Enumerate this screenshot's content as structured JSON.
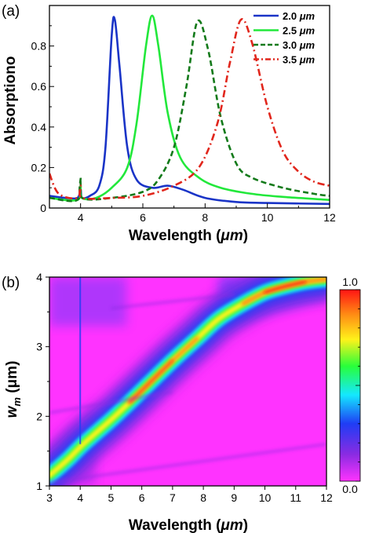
{
  "chart_data": [
    {
      "panel_label": "(a)",
      "type": "line",
      "xlabel_prefix": "Wavelength (",
      "xlabel_unit": "μm",
      "xlabel_suffix": ")",
      "ylabel": "Absorptiono",
      "xlim": [
        3,
        12
      ],
      "ylim": [
        0,
        1.0
      ],
      "xticks": [
        "4",
        "6",
        "8",
        "10",
        "12"
      ],
      "yticks": [
        "0",
        "0.2",
        "0.4",
        "0.6",
        "0.8"
      ],
      "legend_position": "top-right",
      "series": [
        {
          "name": "2.0",
          "unit": "μm",
          "color": "#1a34c7",
          "dash": "solid",
          "peak_x": 5.1,
          "peak_y": 0.93,
          "points": [
            [
              3,
              0.06
            ],
            [
              3.5,
              0.05
            ],
            [
              3.9,
              0.05
            ],
            [
              4.0,
              0.09
            ],
            [
              4.05,
              0.05
            ],
            [
              4.3,
              0.06
            ],
            [
              4.6,
              0.11
            ],
            [
              4.8,
              0.3
            ],
            [
              5.0,
              0.85
            ],
            [
              5.1,
              0.93
            ],
            [
              5.25,
              0.7
            ],
            [
              5.5,
              0.3
            ],
            [
              5.8,
              0.14
            ],
            [
              6.3,
              0.1
            ],
            [
              6.8,
              0.11
            ],
            [
              7.3,
              0.09
            ],
            [
              8,
              0.05
            ],
            [
              9,
              0.03
            ],
            [
              10,
              0.025
            ],
            [
              12,
              0.02
            ]
          ]
        },
        {
          "name": "2.5",
          "unit": "μm",
          "color": "#22e83b",
          "dash": "solid",
          "peak_x": 6.3,
          "peak_y": 0.95,
          "points": [
            [
              3,
              0.05
            ],
            [
              3.9,
              0.04
            ],
            [
              4.0,
              0.11
            ],
            [
              4.05,
              0.05
            ],
            [
              4.5,
              0.05
            ],
            [
              5.0,
              0.1
            ],
            [
              5.5,
              0.2
            ],
            [
              5.8,
              0.42
            ],
            [
              6.1,
              0.8
            ],
            [
              6.3,
              0.95
            ],
            [
              6.5,
              0.8
            ],
            [
              6.8,
              0.47
            ],
            [
              7.2,
              0.25
            ],
            [
              7.8,
              0.15
            ],
            [
              8.5,
              0.1
            ],
            [
              9.5,
              0.07
            ],
            [
              10.5,
              0.055
            ],
            [
              12,
              0.04
            ]
          ]
        },
        {
          "name": "3.0",
          "unit": "μm",
          "color": "#137a1a",
          "dash": "dash",
          "peak_x": 7.75,
          "peak_y": 0.92,
          "points": [
            [
              3,
              0.05
            ],
            [
              3.9,
              0.04
            ],
            [
              4.0,
              0.15
            ],
            [
              4.05,
              0.05
            ],
            [
              5,
              0.05
            ],
            [
              6,
              0.08
            ],
            [
              6.5,
              0.14
            ],
            [
              7.0,
              0.3
            ],
            [
              7.4,
              0.6
            ],
            [
              7.75,
              0.92
            ],
            [
              8.1,
              0.78
            ],
            [
              8.5,
              0.45
            ],
            [
              9.0,
              0.22
            ],
            [
              9.5,
              0.15
            ],
            [
              10.5,
              0.1
            ],
            [
              11.5,
              0.07
            ],
            [
              12,
              0.06
            ]
          ]
        },
        {
          "name": "3.5",
          "unit": "μm",
          "color": "#e1261c",
          "dash": "dashdot",
          "peak_x": 9.15,
          "peak_y": 0.93,
          "points": [
            [
              3,
              0.17
            ],
            [
              3.3,
              0.07
            ],
            [
              3.9,
              0.05
            ],
            [
              4.0,
              0.11
            ],
            [
              4.05,
              0.05
            ],
            [
              5,
              0.05
            ],
            [
              6,
              0.06
            ],
            [
              7,
              0.11
            ],
            [
              7.8,
              0.2
            ],
            [
              8.4,
              0.42
            ],
            [
              8.8,
              0.72
            ],
            [
              9.15,
              0.93
            ],
            [
              9.5,
              0.82
            ],
            [
              10.0,
              0.5
            ],
            [
              10.5,
              0.28
            ],
            [
              11.0,
              0.18
            ],
            [
              11.5,
              0.13
            ],
            [
              12,
              0.11
            ]
          ]
        }
      ]
    },
    {
      "panel_label": "(b)",
      "type": "heatmap",
      "xlabel_prefix": "Wavelength (",
      "xlabel_unit": "μm",
      "xlabel_suffix": ")",
      "ylabel_main": "w",
      "ylabel_sub": "m",
      "ylabel_unit": " (μm)",
      "xlim": [
        3,
        12
      ],
      "ylim": [
        1,
        4
      ],
      "xticks": [
        "3",
        "4",
        "5",
        "6",
        "7",
        "8",
        "9",
        "10",
        "11",
        "12"
      ],
      "yticks": [
        "1",
        "2",
        "3",
        "4"
      ],
      "colorbar_min": "0.0",
      "colorbar_max": "1.0",
      "colormap": [
        "#ff33ff",
        "#8a2be2",
        "#1f3df5",
        "#14e8ff",
        "#28ff3a",
        "#fff21a",
        "#ff8c14",
        "#ff1414"
      ],
      "resonance_ridge": [
        [
          3.0,
          1.15
        ],
        [
          3.6,
          1.38
        ],
        [
          4.1,
          1.6
        ],
        [
          5.0,
          1.95
        ],
        [
          5.6,
          2.2
        ],
        [
          6.3,
          2.5
        ],
        [
          7.0,
          2.8
        ],
        [
          7.8,
          3.12
        ],
        [
          8.5,
          3.4
        ],
        [
          9.3,
          3.62
        ],
        [
          10.0,
          3.78
        ],
        [
          10.6,
          3.86
        ],
        [
          11.3,
          3.93
        ],
        [
          12.0,
          3.97
        ]
      ]
    }
  ]
}
